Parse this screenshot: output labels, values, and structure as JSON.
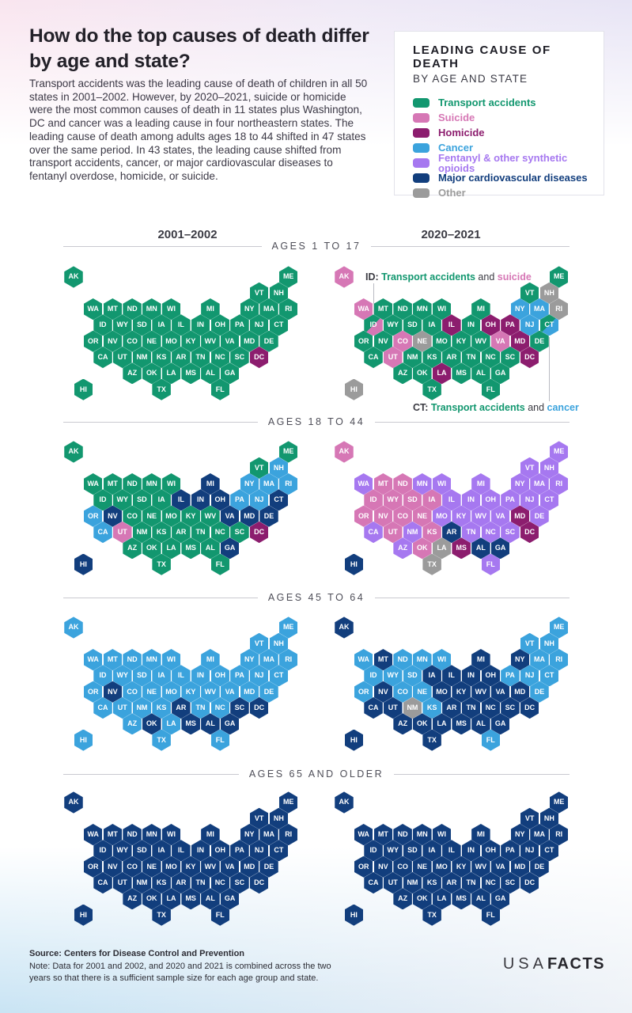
{
  "header": {
    "title": "How do the top causes of death differ by age and state?",
    "intro": "Transport accidents was the leading cause of death of children in all 50 states in 2001–2002. However, by 2020–2021, suicide or homicide were the most common causes of death in 11 states plus Washington, DC and cancer was a leading cause in four northeastern states. The leading cause of death among adults ages 18 to 44 shifted in 47 states over the same period. In 43 states, the leading cause shifted from transport accidents, cancer, or major cardiovascular diseases to fentanyl overdose, homicide, or suicide."
  },
  "legend": {
    "title": "LEADING CAUSE OF DEATH",
    "subtitle": "BY AGE AND STATE"
  },
  "columns": [
    "2001–2002",
    "2020–2021"
  ],
  "footer": {
    "source": "Source: Centers for Disease Control and Prevention",
    "note": "Note: Data for 2001 and 2002, and 2020 and 2021 is combined across the two years so that there is a sufficient sample size for each age group and state.",
    "logo_light": "USA",
    "logo_bold": "FACTS"
  },
  "chart_data": {
    "type": "heatmap",
    "subtype": "us-state-hex-tile-maps",
    "causes": {
      "transport": {
        "label": "Transport accidents",
        "color": "#12976f"
      },
      "suicide": {
        "label": "Suicide",
        "color": "#d677b5"
      },
      "homicide": {
        "label": "Homicide",
        "color": "#8c1d6e"
      },
      "cancer": {
        "label": "Cancer",
        "color": "#3ba3dd"
      },
      "fentanyl": {
        "label": "Fentanyl & other synthetic opioids",
        "color": "#a678f0"
      },
      "cardio": {
        "label": "Major cardiovascular diseases",
        "color": "#123e7d"
      },
      "other": {
        "label": "Other",
        "color": "#9b9b9b"
      }
    },
    "grid": [
      {
        "id": "AK",
        "col": 0,
        "row": 0
      },
      {
        "id": "ME",
        "col": 11,
        "row": 0
      },
      {
        "id": "VT",
        "col": 9.5,
        "row": 1
      },
      {
        "id": "NH",
        "col": 10.5,
        "row": 1
      },
      {
        "id": "WA",
        "col": 1,
        "row": 2
      },
      {
        "id": "MT",
        "col": 2,
        "row": 2
      },
      {
        "id": "ND",
        "col": 3,
        "row": 2
      },
      {
        "id": "MN",
        "col": 4,
        "row": 2
      },
      {
        "id": "WI",
        "col": 5,
        "row": 2
      },
      {
        "id": "MI",
        "col": 7,
        "row": 2
      },
      {
        "id": "NY",
        "col": 9,
        "row": 2
      },
      {
        "id": "MA",
        "col": 10,
        "row": 2
      },
      {
        "id": "RI",
        "col": 11,
        "row": 2
      },
      {
        "id": "ID",
        "col": 1.5,
        "row": 3
      },
      {
        "id": "WY",
        "col": 2.5,
        "row": 3
      },
      {
        "id": "SD",
        "col": 3.5,
        "row": 3
      },
      {
        "id": "IA",
        "col": 4.5,
        "row": 3
      },
      {
        "id": "IL",
        "col": 5.5,
        "row": 3
      },
      {
        "id": "IN",
        "col": 6.5,
        "row": 3
      },
      {
        "id": "OH",
        "col": 7.5,
        "row": 3
      },
      {
        "id": "PA",
        "col": 8.5,
        "row": 3
      },
      {
        "id": "NJ",
        "col": 9.5,
        "row": 3
      },
      {
        "id": "CT",
        "col": 10.5,
        "row": 3
      },
      {
        "id": "OR",
        "col": 1,
        "row": 4
      },
      {
        "id": "NV",
        "col": 2,
        "row": 4
      },
      {
        "id": "CO",
        "col": 3,
        "row": 4
      },
      {
        "id": "NE",
        "col": 4,
        "row": 4
      },
      {
        "id": "MO",
        "col": 5,
        "row": 4
      },
      {
        "id": "KY",
        "col": 6,
        "row": 4
      },
      {
        "id": "WV",
        "col": 7,
        "row": 4
      },
      {
        "id": "VA",
        "col": 8,
        "row": 4
      },
      {
        "id": "MD",
        "col": 9,
        "row": 4
      },
      {
        "id": "DE",
        "col": 10,
        "row": 4
      },
      {
        "id": "CA",
        "col": 1.5,
        "row": 5
      },
      {
        "id": "UT",
        "col": 2.5,
        "row": 5
      },
      {
        "id": "NM",
        "col": 3.5,
        "row": 5
      },
      {
        "id": "KS",
        "col": 4.5,
        "row": 5
      },
      {
        "id": "AR",
        "col": 5.5,
        "row": 5
      },
      {
        "id": "TN",
        "col": 6.5,
        "row": 5
      },
      {
        "id": "NC",
        "col": 7.5,
        "row": 5
      },
      {
        "id": "SC",
        "col": 8.5,
        "row": 5
      },
      {
        "id": "DC",
        "col": 9.5,
        "row": 5
      },
      {
        "id": "AZ",
        "col": 3,
        "row": 6
      },
      {
        "id": "OK",
        "col": 4,
        "row": 6
      },
      {
        "id": "LA",
        "col": 5,
        "row": 6
      },
      {
        "id": "MS",
        "col": 6,
        "row": 6
      },
      {
        "id": "AL",
        "col": 7,
        "row": 6
      },
      {
        "id": "GA",
        "col": 8,
        "row": 6
      },
      {
        "id": "HI",
        "col": 0.5,
        "row": 7
      },
      {
        "id": "TX",
        "col": 4.5,
        "row": 7
      },
      {
        "id": "FL",
        "col": 7.5,
        "row": 7
      }
    ],
    "sections": [
      {
        "label": "AGES 1 TO 17",
        "maps": [
          {
            "period": "2001–2002",
            "default": "transport",
            "overrides": {
              "DC": "homicide"
            }
          },
          {
            "period": "2020–2021",
            "default": "transport",
            "overrides": {
              "AK": "suicide",
              "WA": "suicide",
              "NY": "cancer",
              "MA": "cancer",
              "RI": "other",
              "NH": "other",
              "IL": "homicide",
              "OH": "homicide",
              "PA": "homicide",
              "NJ": "cancer",
              "CO": "suicide",
              "NE": "other",
              "VA": "suicide",
              "MD": "homicide",
              "UT": "suicide",
              "DC": "homicide",
              "LA": "homicide",
              "HI": "other"
            },
            "splits": {
              "ID": [
                "transport",
                "suicide"
              ],
              "CT": [
                "transport",
                "cancer"
              ]
            },
            "callouts": [
              {
                "position": "top",
                "parts": [
                  {
                    "text": "ID: ",
                    "cause": null
                  },
                  {
                    "text": "Transport accidents",
                    "cause": "transport"
                  },
                  {
                    "text": " and ",
                    "cause": null
                  },
                  {
                    "text": "suicide",
                    "cause": "suicide"
                  }
                ]
              },
              {
                "position": "bottom",
                "parts": [
                  {
                    "text": "CT: ",
                    "cause": null
                  },
                  {
                    "text": "Transport accidents",
                    "cause": "transport"
                  },
                  {
                    "text": " and ",
                    "cause": null
                  },
                  {
                    "text": "cancer",
                    "cause": "cancer"
                  }
                ]
              }
            ]
          }
        ]
      },
      {
        "label": "AGES 18 TO 44",
        "maps": [
          {
            "period": "2001–2002",
            "default": "transport",
            "overrides": {
              "NH": "cancer",
              "NY": "cancer",
              "MA": "cancer",
              "RI": "cancer",
              "PA": "cancer",
              "NJ": "cancer",
              "OR": "cancer",
              "CA": "cancer",
              "MI": "cardio",
              "IL": "cardio",
              "IN": "cardio",
              "OH": "cardio",
              "CT": "cardio",
              "NV": "cardio",
              "VA": "cardio",
              "MD": "cardio",
              "DE": "cardio",
              "GA": "cardio",
              "HI": "cardio",
              "UT": "suicide",
              "DC": "homicide"
            }
          },
          {
            "period": "2020–2021",
            "default": "fentanyl",
            "overrides": {
              "AK": "suicide",
              "MT": "suicide",
              "ND": "suicide",
              "ID": "suicide",
              "WY": "suicide",
              "SD": "suicide",
              "IA": "suicide",
              "OR": "suicide",
              "NV": "suicide",
              "CO": "suicide",
              "NE": "suicide",
              "UT": "suicide",
              "KS": "suicide",
              "OK": "suicide",
              "MD": "homicide",
              "MS": "homicide",
              "DC": "homicide",
              "AR": "cardio",
              "AL": "cardio",
              "GA": "cardio",
              "HI": "cardio",
              "LA": "other",
              "TX": "other"
            }
          }
        ]
      },
      {
        "label": "AGES 45 TO 64",
        "maps": [
          {
            "period": "2001–2002",
            "default": "cancer",
            "overrides": {
              "NV": "cardio",
              "AR": "cardio",
              "SC": "cardio",
              "DC": "cardio",
              "OK": "cardio",
              "MS": "cardio",
              "AL": "cardio",
              "GA": "cardio"
            }
          },
          {
            "period": "2020–2021",
            "default": "cardio",
            "overrides": {
              "ME": "cancer",
              "VT": "cancer",
              "NH": "cancer",
              "WA": "cancer",
              "ND": "cancer",
              "MN": "cancer",
              "WI": "cancer",
              "MA": "cancer",
              "RI": "cancer",
              "ID": "cancer",
              "WY": "cancer",
              "SD": "cancer",
              "PA": "cancer",
              "NJ": "cancer",
              "CT": "cancer",
              "OR": "cancer",
              "CO": "cancer",
              "NE": "cancer",
              "DE": "cancer",
              "KS": "cancer",
              "FL": "cancer",
              "NM": "other"
            }
          }
        ]
      },
      {
        "label": "AGES 65 AND OLDER",
        "maps": [
          {
            "period": "2001–2002",
            "default": "cardio",
            "overrides": {}
          },
          {
            "period": "2020–2021",
            "default": "cardio",
            "overrides": {}
          }
        ]
      }
    ]
  }
}
